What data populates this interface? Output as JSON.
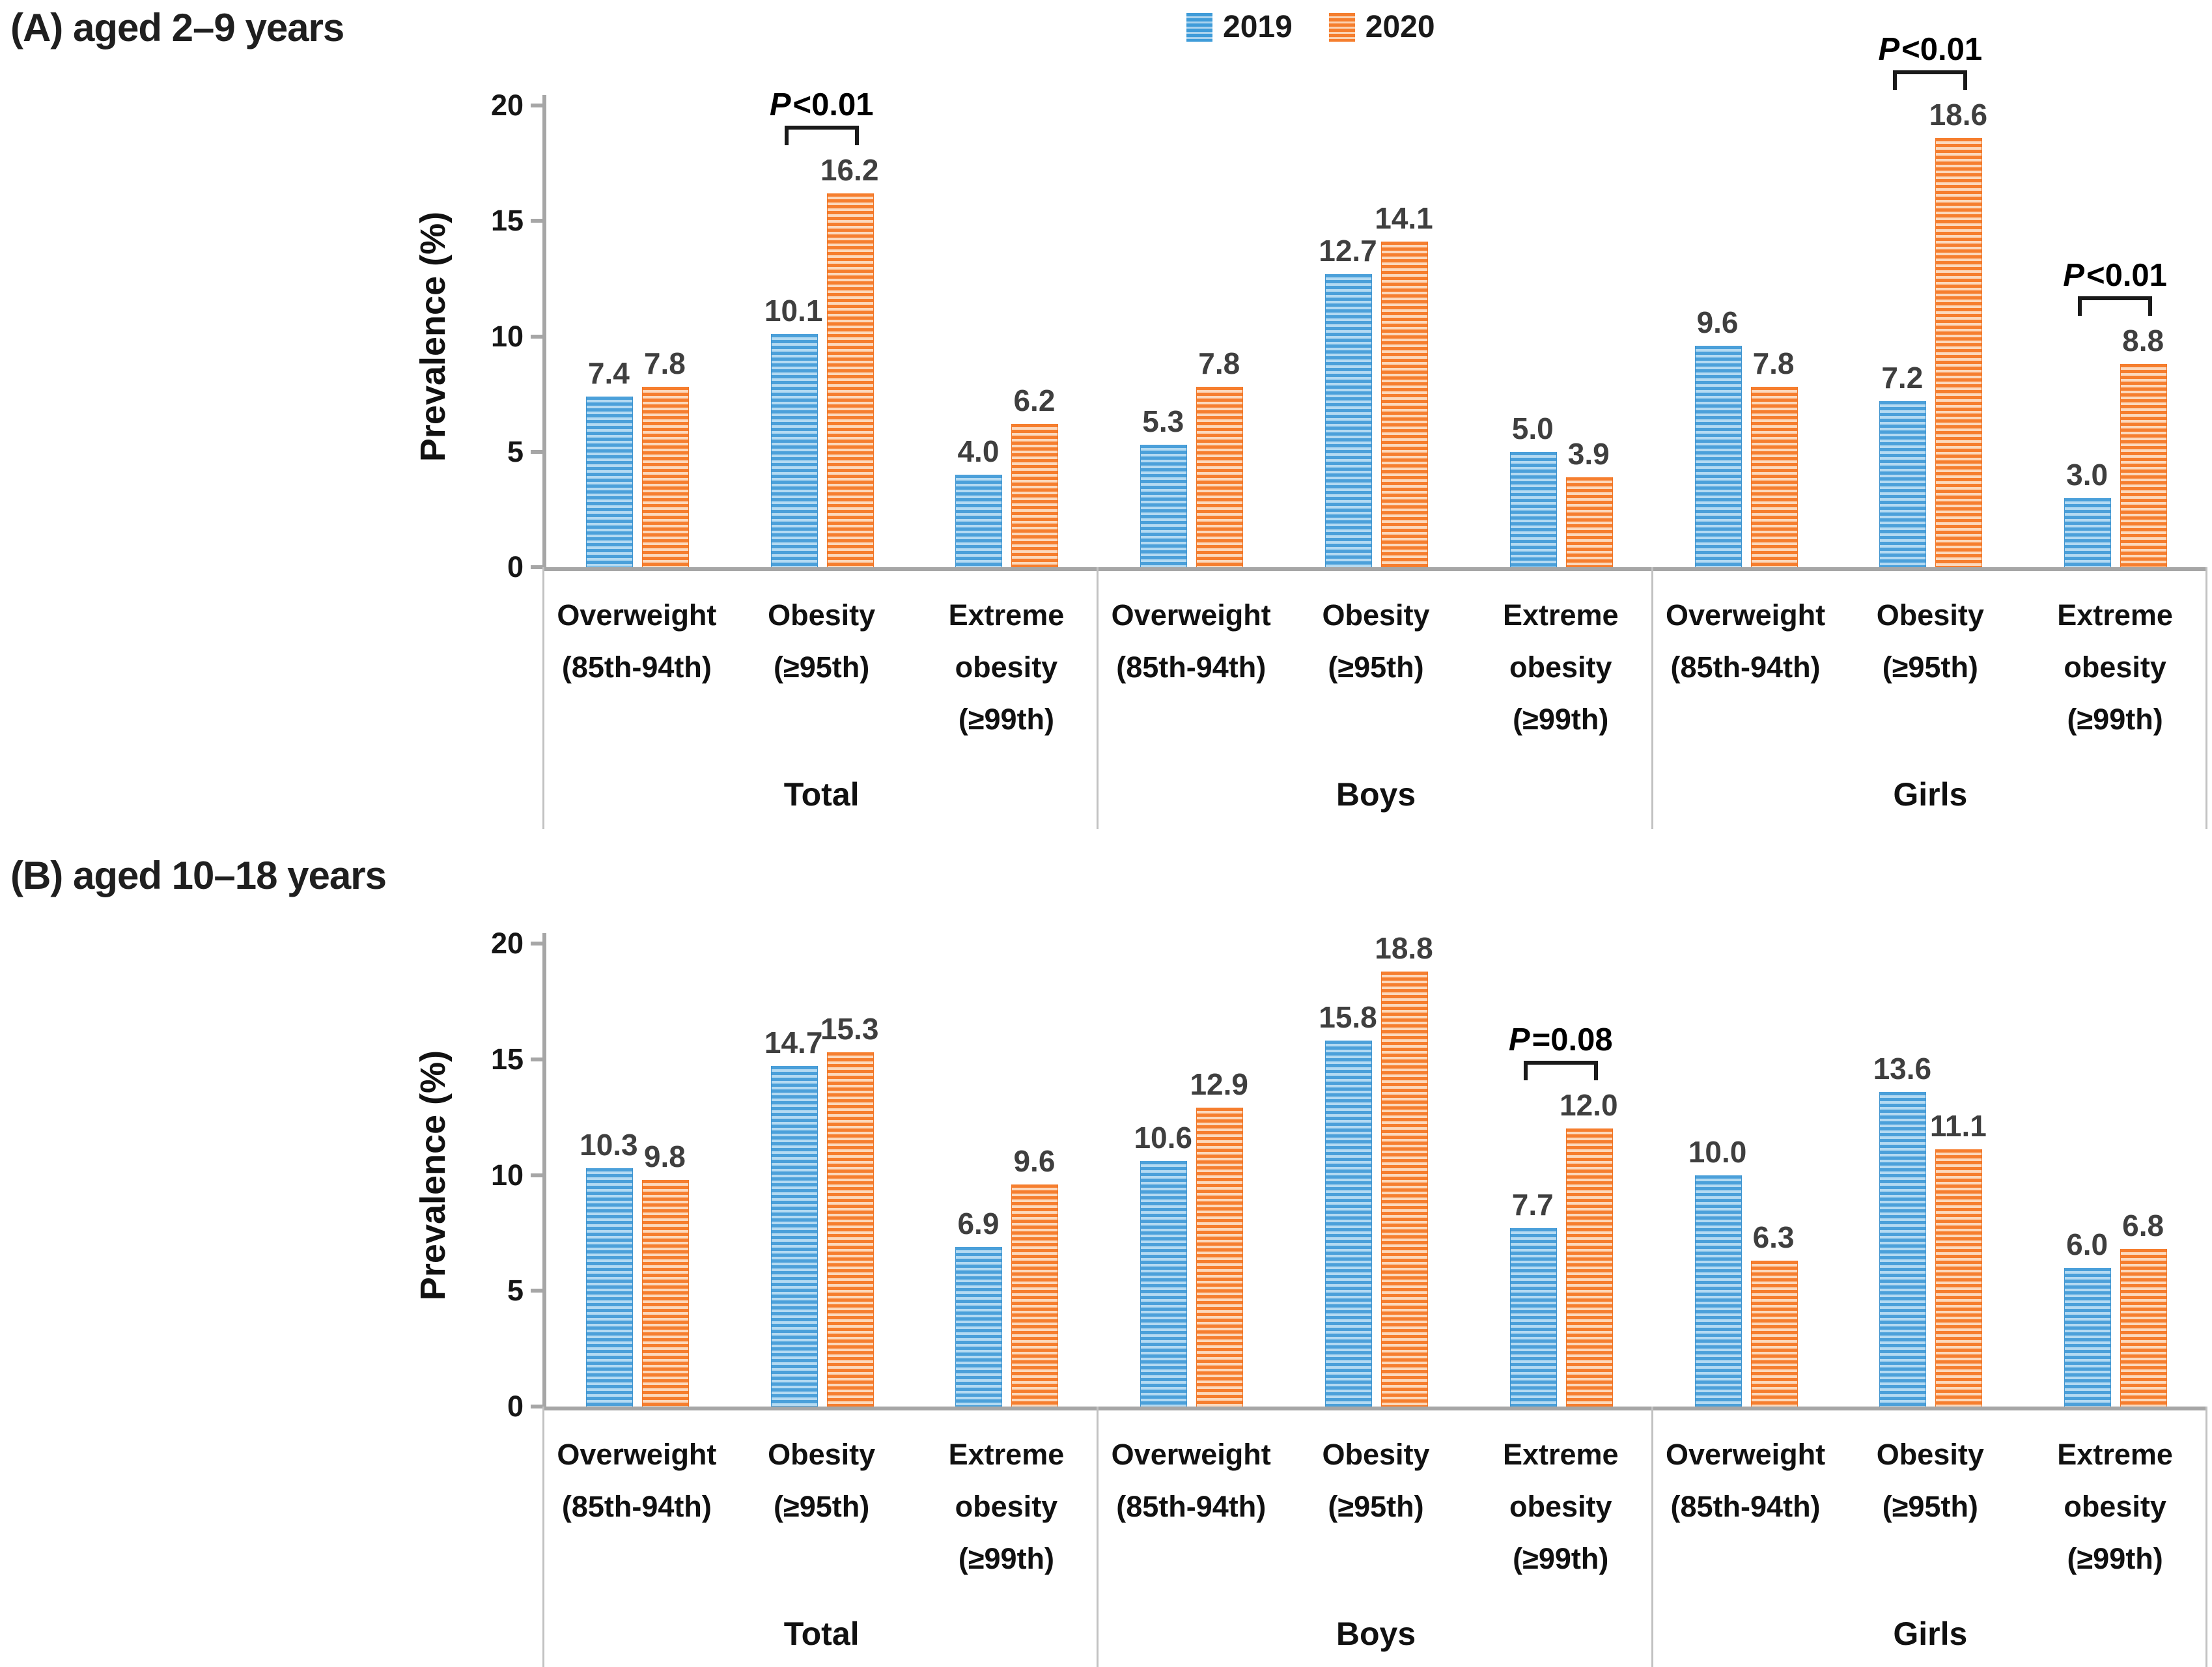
{
  "figure": {
    "description": "Prevalence of overweight and obesity in 2019 and 2020 by age group, sex and weight category",
    "colors": {
      "series_2019": "#4BA0DA",
      "series_2019_stripe": "#B4DAF2",
      "series_2020": "#F67E2E",
      "series_2020_stripe": "#FCD9BD",
      "axis": "#A6A6A6",
      "section_divider": "#C2C2C2",
      "value_label": "#3F3F3F",
      "text": "#111111"
    },
    "bar_pattern": "horizontal-stripes"
  },
  "chart_data": [
    {
      "type": "bar",
      "panel": "A",
      "title": "(A) aged 2–9 years",
      "ylabel": "Prevalence (%)",
      "ylim": [
        0,
        20
      ],
      "yticks": [
        0,
        5,
        10,
        15,
        20
      ],
      "grid": false,
      "legend_position": "top-center",
      "legend": [
        "2019",
        "2020"
      ],
      "group_labels": [
        "Total",
        "Boys",
        "Girls"
      ],
      "categories": [
        [
          "Overweight",
          "(85th-94th)"
        ],
        [
          "Obesity",
          "(≥95th)"
        ],
        [
          "Extreme",
          "obesity",
          "(≥99th)"
        ]
      ],
      "series": [
        {
          "name": "2019",
          "color": "#4BA0DA",
          "values": [
            [
              7.4,
              10.1,
              4.0
            ],
            [
              5.3,
              12.7,
              5.0
            ],
            [
              9.6,
              7.2,
              3.0
            ]
          ]
        },
        {
          "name": "2020",
          "color": "#F67E2E",
          "values": [
            [
              7.8,
              16.2,
              6.2
            ],
            [
              7.8,
              14.1,
              3.9
            ],
            [
              7.8,
              18.6,
              8.8
            ]
          ]
        }
      ],
      "annotations": [
        {
          "group_index": 0,
          "category_index": 1,
          "p_italic": "P",
          "p_rest": "<0.01"
        },
        {
          "group_index": 2,
          "category_index": 1,
          "p_italic": "P",
          "p_rest": "<0.01"
        },
        {
          "group_index": 2,
          "category_index": 2,
          "p_italic": "P",
          "p_rest": "<0.01"
        }
      ]
    },
    {
      "type": "bar",
      "panel": "B",
      "title": "(B) aged 10–18 years",
      "ylabel": "Prevalence (%)",
      "ylim": [
        0,
        20
      ],
      "yticks": [
        0,
        5,
        10,
        15,
        20
      ],
      "grid": false,
      "legend_position": "none",
      "legend": [
        "2019",
        "2020"
      ],
      "group_labels": [
        "Total",
        "Boys",
        "Girls"
      ],
      "categories": [
        [
          "Overweight",
          "(85th-94th)"
        ],
        [
          "Obesity",
          "(≥95th)"
        ],
        [
          "Extreme",
          "obesity",
          "(≥99th)"
        ]
      ],
      "series": [
        {
          "name": "2019",
          "color": "#4BA0DA",
          "values": [
            [
              10.3,
              14.7,
              6.9
            ],
            [
              10.6,
              15.8,
              7.7
            ],
            [
              10.0,
              13.6,
              6.0
            ]
          ]
        },
        {
          "name": "2020",
          "color": "#F67E2E",
          "values": [
            [
              9.8,
              15.3,
              9.6
            ],
            [
              12.9,
              18.8,
              12.0
            ],
            [
              6.3,
              11.1,
              6.8
            ]
          ]
        }
      ],
      "annotations": [
        {
          "group_index": 1,
          "category_index": 2,
          "p_italic": "P",
          "p_rest": "=0.08"
        }
      ]
    }
  ]
}
